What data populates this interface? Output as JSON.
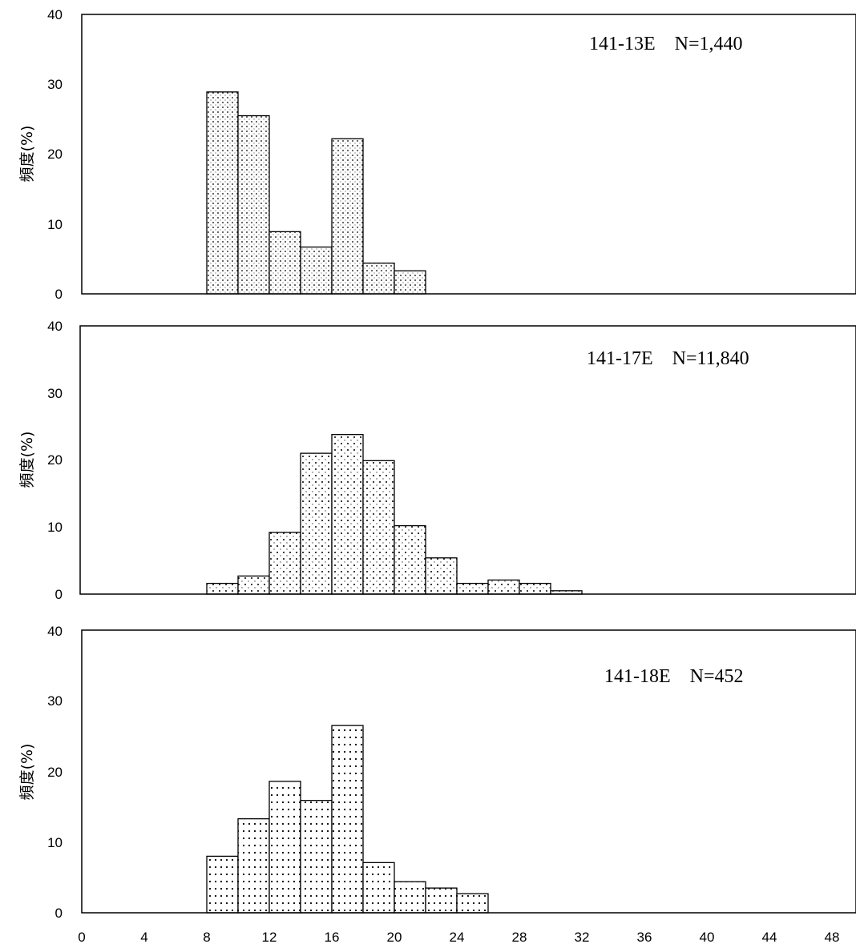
{
  "chart_data": [
    {
      "type": "bar",
      "annotation": "141-13E　N=1,440",
      "ylabel": "頻度(%)",
      "ylim": [
        0,
        40
      ],
      "xlim": [
        0,
        48
      ],
      "yticks": [
        "0",
        "10",
        "20",
        "30",
        "40"
      ],
      "bin_width": 2,
      "bins": [
        8,
        10,
        12,
        14,
        16,
        18,
        20
      ],
      "values": [
        28.9,
        25.5,
        8.9,
        6.7,
        22.2,
        4.4,
        3.3
      ],
      "pattern": "dots-fine"
    },
    {
      "type": "bar",
      "annotation": "141-17E　N=11,840",
      "ylabel": "頻度(%)",
      "ylim": [
        0,
        40
      ],
      "xlim": [
        0,
        48
      ],
      "yticks": [
        "0",
        "10",
        "20",
        "30",
        "40"
      ],
      "bin_width": 2,
      "bins": [
        8,
        10,
        12,
        14,
        16,
        18,
        20,
        22,
        24,
        26,
        28,
        30
      ],
      "values": [
        1.6,
        2.7,
        9.2,
        21.0,
        23.8,
        19.9,
        10.2,
        5.4,
        1.6,
        2.1,
        1.6,
        0.5
      ],
      "pattern": "dots-medium"
    },
    {
      "type": "bar",
      "annotation": "141-18E　N=452",
      "ylabel": "頻度(%)",
      "ylim": [
        0,
        40
      ],
      "xlim": [
        0,
        48
      ],
      "yticks": [
        "0",
        "10",
        "20",
        "30",
        "40"
      ],
      "xticks": [
        "0",
        "4",
        "8",
        "12",
        "16",
        "20",
        "24",
        "28",
        "32",
        "36",
        "40",
        "44",
        "48"
      ],
      "bin_width": 2,
      "bins": [
        8,
        10,
        12,
        14,
        16,
        18,
        20,
        22,
        24
      ],
      "values": [
        8.0,
        13.3,
        18.6,
        15.9,
        26.5,
        7.1,
        4.4,
        3.5,
        2.7
      ],
      "pattern": "dots-coarse"
    }
  ]
}
